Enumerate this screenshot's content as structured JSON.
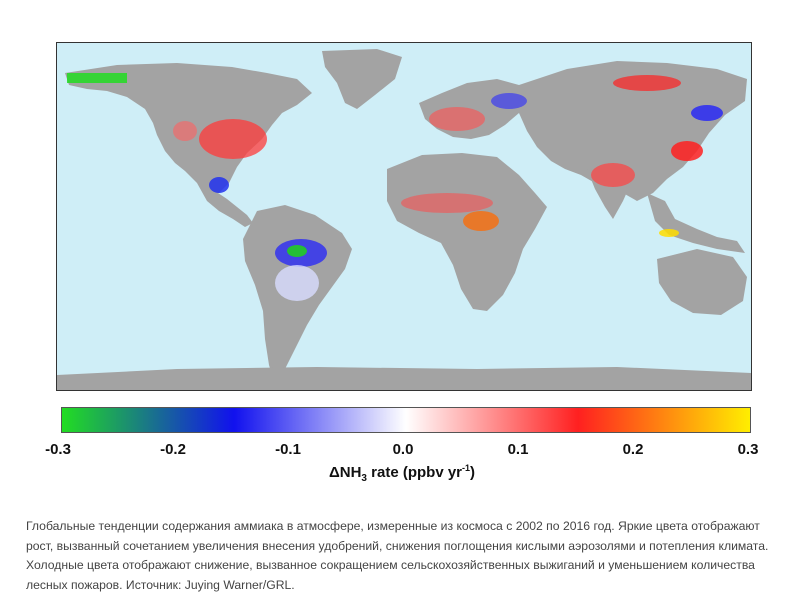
{
  "map": {
    "colors": {
      "ocean": "#cfeef7",
      "land": "#a3a3a3",
      "increase": "#ff2a2a",
      "strong_increase": "#ff6a00",
      "decrease": "#1a1aff",
      "strong_decrease": "#22cc22"
    }
  },
  "colorbar": {
    "stops": [
      "#22dd22",
      "#1111ee",
      "#ffffff",
      "#ff2020",
      "#ffee00"
    ],
    "ticks": [
      "-0.3",
      "-0.2",
      "-0.1",
      "0.0",
      "0.1",
      "0.2",
      "0.3"
    ],
    "label_prefix": "ΔNH",
    "label_sub": "3",
    "label_mid": " rate (ppbv yr",
    "label_sup": "-1",
    "label_suffix": ")"
  },
  "caption": "Глобальные тенденции содержания аммиака в атмосфере, измеренные из космоса с 2002 по 2016 год. Яркие цвета отображают рост, вызванный сочетанием увеличения внесения удобрений, снижения поглощения кислыми аэрозолями и потепления климата. Холодные цвета отображают снижение, вызванное сокращением сельскохозяйственных выжиганий и уменьшением количества лесных пожаров. Источник: Juying Warner/GRL."
}
